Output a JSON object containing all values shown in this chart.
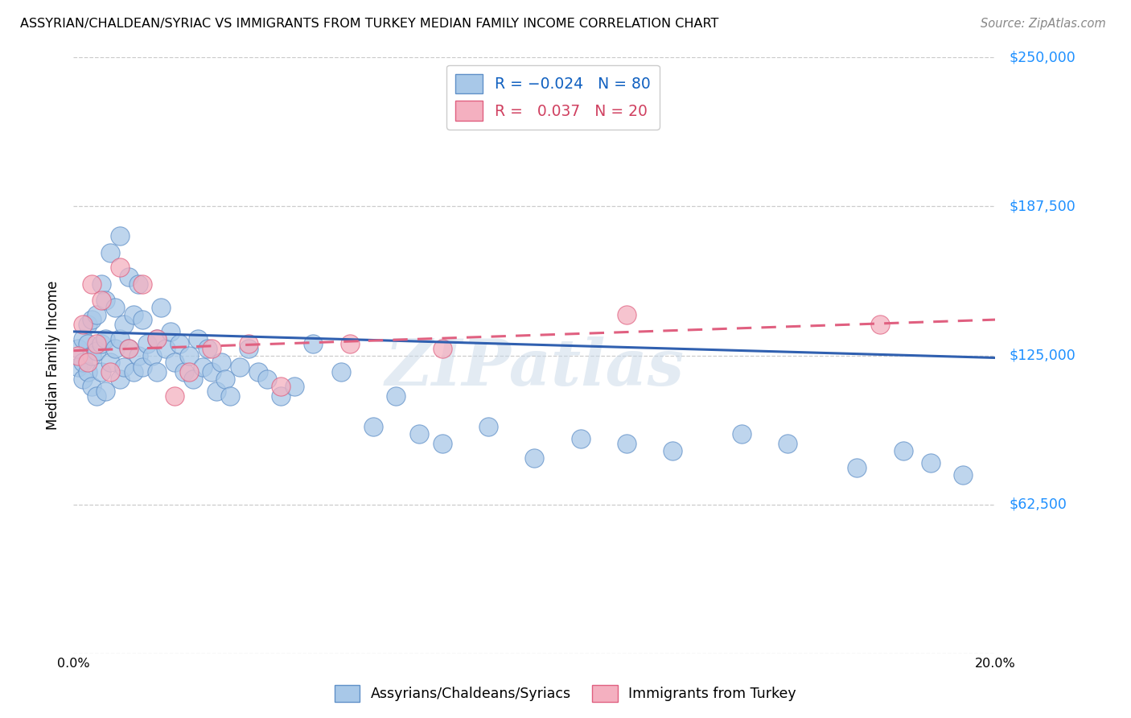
{
  "title": "ASSYRIAN/CHALDEAN/SYRIAC VS IMMIGRANTS FROM TURKEY MEDIAN FAMILY INCOME CORRELATION CHART",
  "source": "Source: ZipAtlas.com",
  "ylabel": "Median Family Income",
  "blue_label": "Assyrians/Chaldeans/Syriacs",
  "pink_label": "Immigrants from Turkey",
  "blue_R": -0.024,
  "blue_N": 80,
  "pink_R": 0.037,
  "pink_N": 20,
  "blue_color": "#A8C8E8",
  "pink_color": "#F4B0C0",
  "blue_edge_color": "#6090C8",
  "pink_edge_color": "#E06080",
  "blue_line_color": "#3060B0",
  "pink_line_color": "#E06080",
  "watermark": "ZIPatlas",
  "xlim": [
    0.0,
    0.2
  ],
  "ylim": [
    0,
    250000
  ],
  "yticks": [
    0,
    62500,
    125000,
    187500,
    250000
  ],
  "ytick_labels_right": [
    "",
    "$62,500",
    "$125,000",
    "$187,500",
    "$250,000"
  ],
  "blue_trend_y0": 135000,
  "blue_trend_y1": 124000,
  "pink_trend_y0": 127000,
  "pink_trend_y1": 140000,
  "blue_x": [
    0.001,
    0.001,
    0.002,
    0.002,
    0.002,
    0.003,
    0.003,
    0.003,
    0.004,
    0.004,
    0.004,
    0.005,
    0.005,
    0.005,
    0.006,
    0.006,
    0.006,
    0.007,
    0.007,
    0.007,
    0.008,
    0.008,
    0.009,
    0.009,
    0.01,
    0.01,
    0.01,
    0.011,
    0.011,
    0.012,
    0.012,
    0.013,
    0.013,
    0.014,
    0.014,
    0.015,
    0.015,
    0.016,
    0.017,
    0.018,
    0.018,
    0.019,
    0.02,
    0.021,
    0.022,
    0.023,
    0.024,
    0.025,
    0.026,
    0.027,
    0.028,
    0.029,
    0.03,
    0.031,
    0.032,
    0.033,
    0.034,
    0.036,
    0.038,
    0.04,
    0.042,
    0.045,
    0.048,
    0.052,
    0.058,
    0.065,
    0.07,
    0.075,
    0.08,
    0.09,
    0.1,
    0.11,
    0.12,
    0.13,
    0.145,
    0.155,
    0.17,
    0.18,
    0.186,
    0.193
  ],
  "blue_y": [
    120000,
    128000,
    115000,
    122000,
    132000,
    118000,
    130000,
    138000,
    112000,
    125000,
    140000,
    108000,
    127000,
    142000,
    118000,
    130000,
    155000,
    110000,
    132000,
    148000,
    122000,
    168000,
    128000,
    145000,
    115000,
    132000,
    175000,
    120000,
    138000,
    128000,
    158000,
    118000,
    142000,
    125000,
    155000,
    120000,
    140000,
    130000,
    125000,
    118000,
    132000,
    145000,
    128000,
    135000,
    122000,
    130000,
    118000,
    125000,
    115000,
    132000,
    120000,
    128000,
    118000,
    110000,
    122000,
    115000,
    108000,
    120000,
    128000,
    118000,
    115000,
    108000,
    112000,
    130000,
    118000,
    95000,
    108000,
    92000,
    88000,
    95000,
    82000,
    90000,
    88000,
    85000,
    92000,
    88000,
    78000,
    85000,
    80000,
    75000
  ],
  "pink_x": [
    0.001,
    0.002,
    0.003,
    0.004,
    0.005,
    0.006,
    0.008,
    0.01,
    0.012,
    0.015,
    0.018,
    0.022,
    0.025,
    0.03,
    0.038,
    0.045,
    0.06,
    0.08,
    0.12,
    0.175
  ],
  "pink_y": [
    125000,
    138000,
    122000,
    155000,
    130000,
    148000,
    118000,
    162000,
    128000,
    155000,
    132000,
    108000,
    118000,
    128000,
    130000,
    112000,
    130000,
    128000,
    142000,
    138000
  ]
}
